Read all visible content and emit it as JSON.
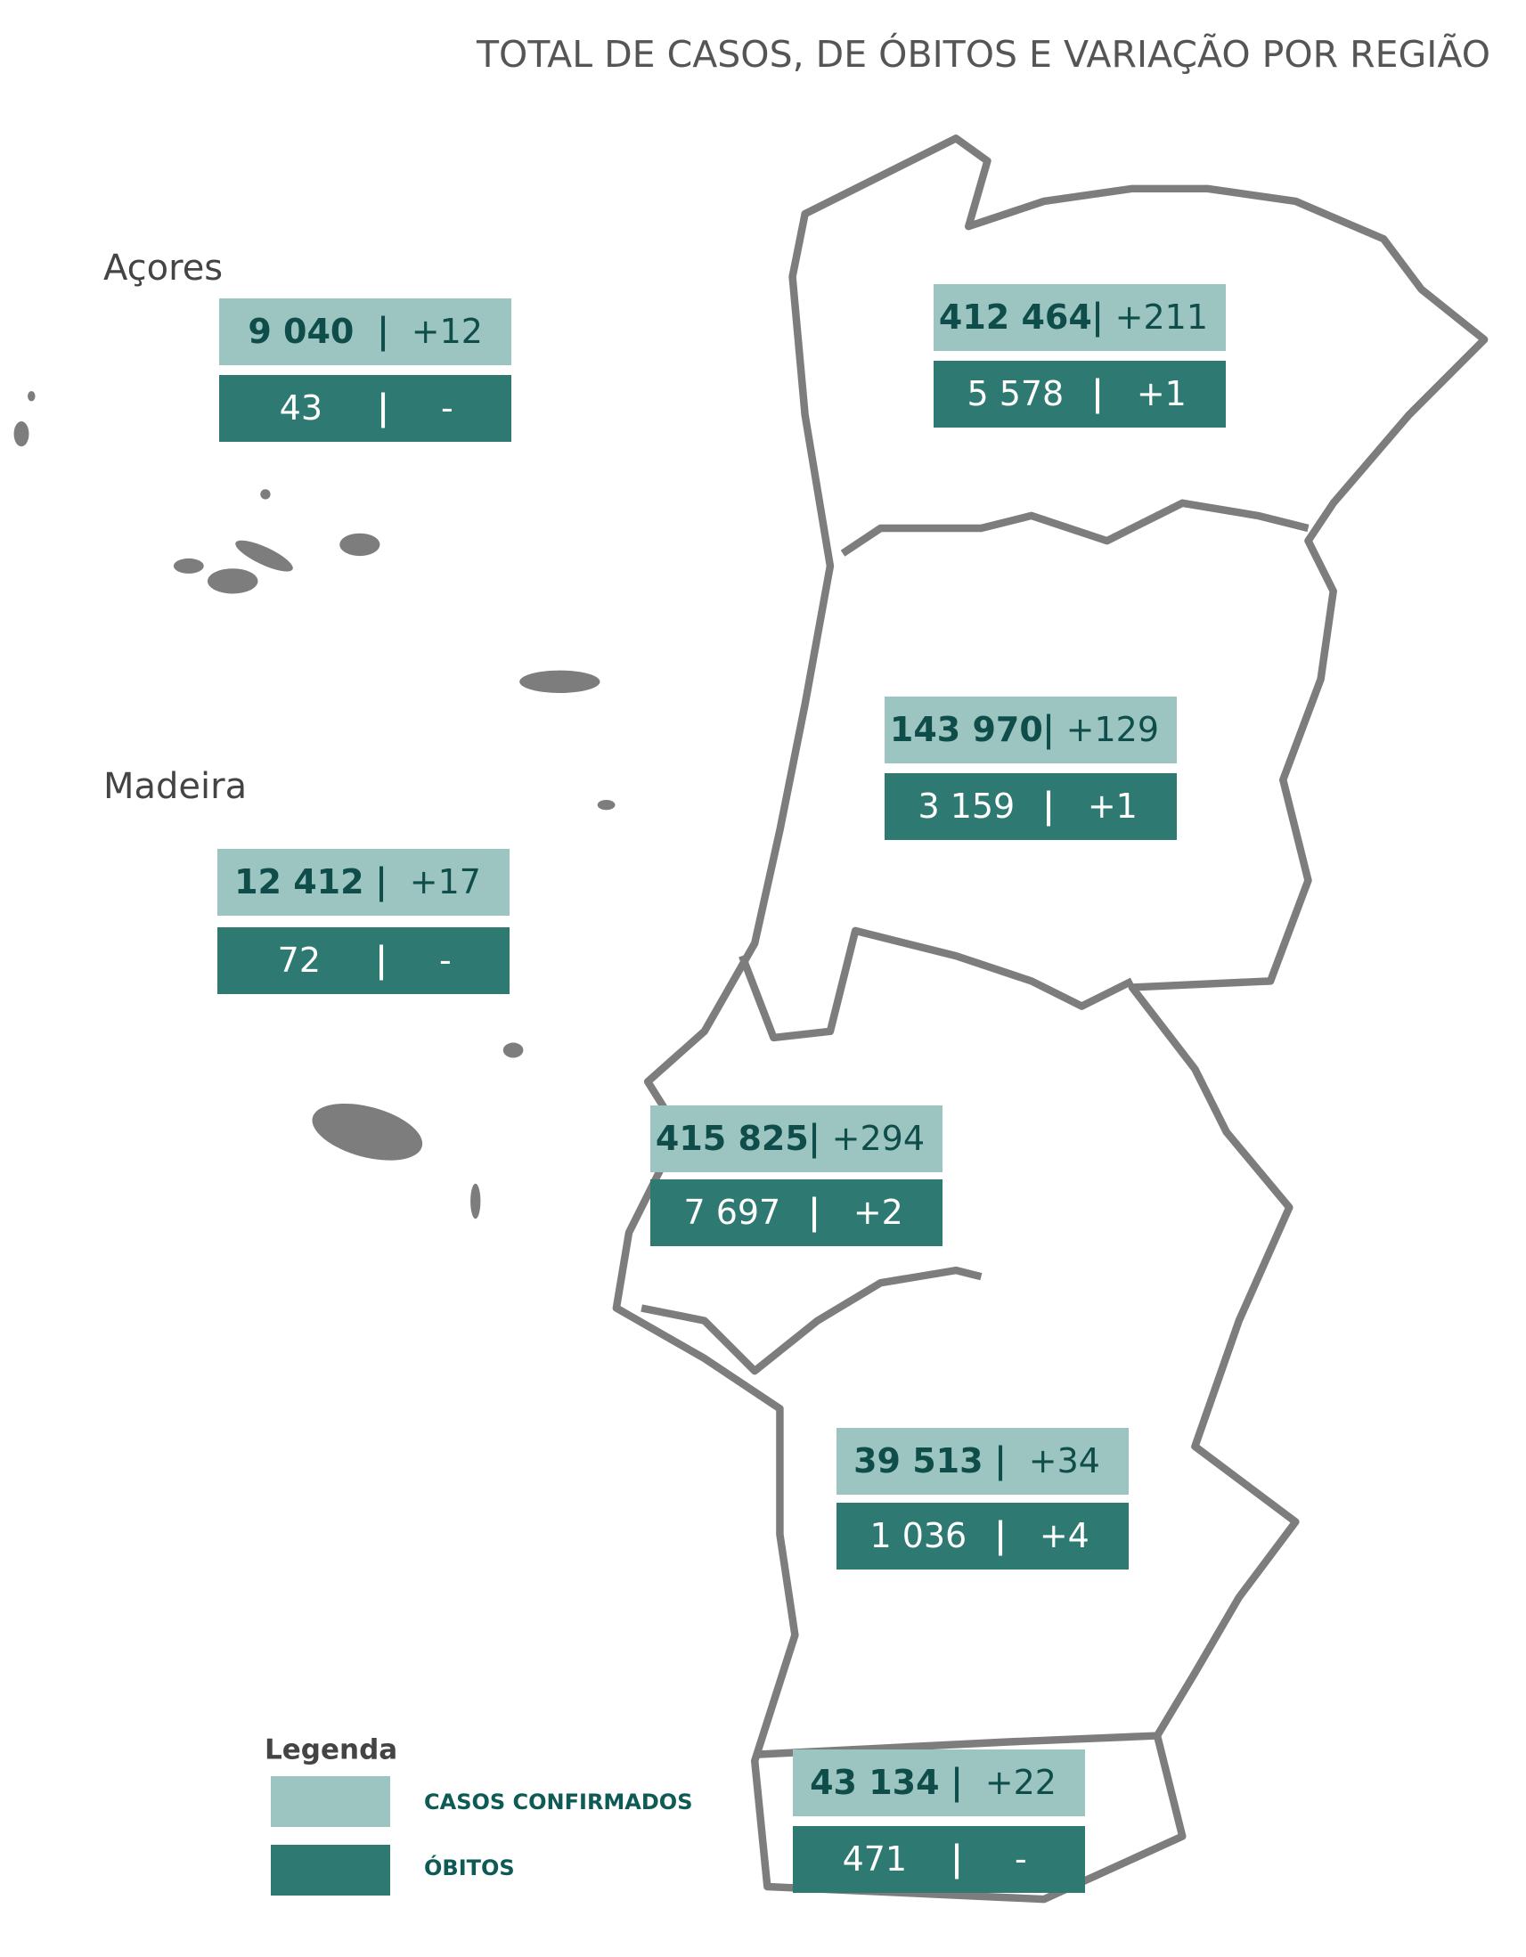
{
  "title": "TOTAL DE CASOS, DE ÓBITOS E VARIAÇÃO POR REGIÃO",
  "regions": [
    {
      "name": "Açores",
      "cases": "9 040",
      "cases_change": "+12",
      "deaths": "43",
      "deaths_change": "-"
    },
    {
      "name": "Madeira",
      "cases": "12 412",
      "cases_change": "+17",
      "deaths": "72",
      "deaths_change": "-"
    },
    {
      "cases": "412 464",
      "cases_change": "+211",
      "deaths": "5 578",
      "deaths_change": "+1"
    },
    {
      "cases": "143 970",
      "cases_change": "+129",
      "deaths": "3 159",
      "deaths_change": "+1"
    },
    {
      "cases": "415 825",
      "cases_change": "+294",
      "deaths": "7 697",
      "deaths_change": "+2"
    },
    {
      "cases": "39 513",
      "cases_change": "+34",
      "deaths": "1 036",
      "deaths_change": "+4"
    },
    {
      "cases": "43 134",
      "cases_change": "+22",
      "deaths": "471",
      "deaths_change": "-"
    }
  ],
  "legend": {
    "title": "Legenda",
    "items": [
      "CASOS CONFIRMADOS",
      "ÓBITOS"
    ]
  }
}
